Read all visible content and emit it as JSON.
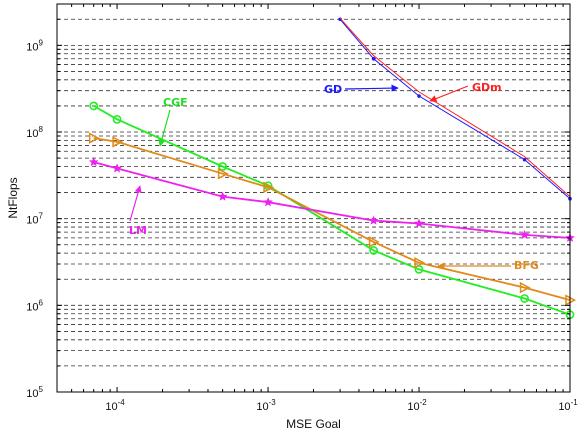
{
  "chart_data": {
    "type": "line",
    "title": "",
    "xlabel": "MSE Goal",
    "ylabel": "NtFlops",
    "xscale": "log",
    "yscale": "log",
    "xlim": [
      4e-05,
      0.1
    ],
    "ylim": [
      100000,
      3000000000
    ],
    "grid": "horizontal dashed (major and minor)",
    "x_ticks": [
      {
        "base": "10",
        "exp": "-4"
      },
      {
        "base": "10",
        "exp": "-3"
      },
      {
        "base": "10",
        "exp": "-2"
      },
      {
        "base": "10",
        "exp": "-1"
      }
    ],
    "y_ticks": [
      {
        "base": "10",
        "exp": "5"
      },
      {
        "base": "10",
        "exp": "6"
      },
      {
        "base": "10",
        "exp": "7"
      },
      {
        "base": "10",
        "exp": "8"
      },
      {
        "base": "10",
        "exp": "9"
      }
    ],
    "series": [
      {
        "name": "GD",
        "color": "#1a1aff",
        "marker": "dot",
        "x": [
          0.003,
          0.005,
          0.01,
          0.05,
          0.1
        ],
        "y": [
          2000000000,
          700000000,
          260000000,
          48000000,
          17000000
        ]
      },
      {
        "name": "GDm",
        "color": "#ff2020",
        "marker": "none",
        "x": [
          0.003,
          0.005,
          0.01,
          0.05,
          0.1
        ],
        "y": [
          2050000000,
          760000000,
          290000000,
          52000000,
          18000000
        ]
      },
      {
        "name": "CGF",
        "color": "#22ee22",
        "marker": "circle",
        "x": [
          7e-05,
          0.0001,
          0.0005,
          0.001,
          0.005,
          0.01,
          0.05,
          0.1
        ],
        "y": [
          200000000,
          140000000,
          40000000,
          24000000,
          4300000,
          2600000,
          1200000,
          780000
        ]
      },
      {
        "name": "BFG",
        "color": "#e08a1a",
        "marker": "triangle-right",
        "x": [
          7e-05,
          0.0001,
          0.0005,
          0.001,
          0.005,
          0.01,
          0.05,
          0.1
        ],
        "y": [
          85000000,
          77000000,
          33000000,
          23000000,
          5400000,
          3100000,
          1600000,
          1150000
        ]
      },
      {
        "name": "LM",
        "color": "#ee22ee",
        "marker": "star",
        "x": [
          7e-05,
          0.0001,
          0.0005,
          0.001,
          0.005,
          0.01,
          0.05,
          0.1
        ],
        "y": [
          45000000,
          38000000,
          18000000,
          15500000,
          9500000,
          8800000,
          6500000,
          6000000
        ]
      }
    ],
    "annotations": [
      {
        "text": "GD",
        "color": "#1a1aff"
      },
      {
        "text": "GDm",
        "color": "#ff2020"
      },
      {
        "text": "CGF",
        "color": "#22dd22"
      },
      {
        "text": "BFG",
        "color": "#e08a1a"
      },
      {
        "text": "LM",
        "color": "#ee22ee"
      }
    ]
  }
}
